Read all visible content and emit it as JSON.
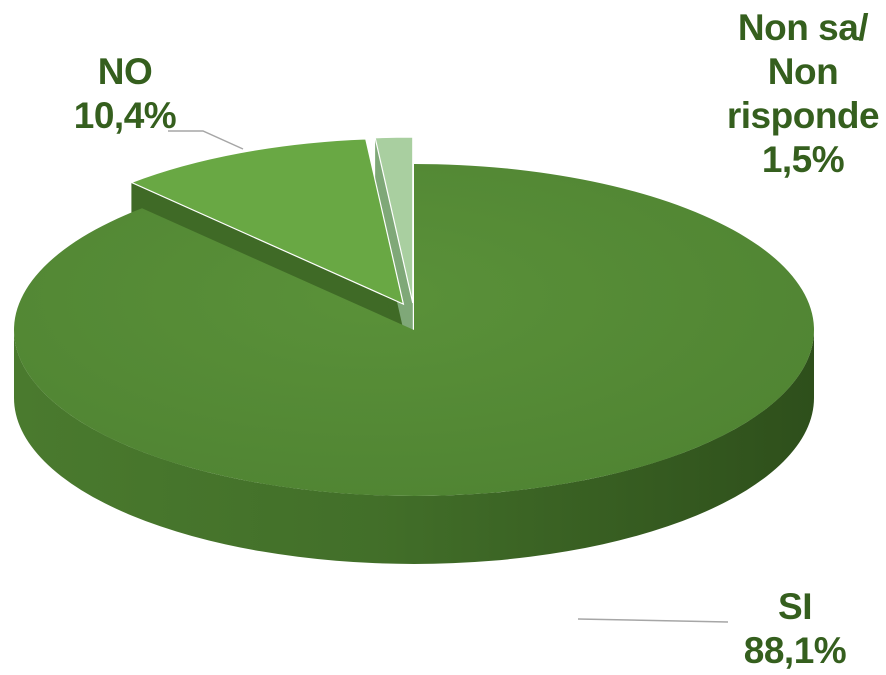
{
  "chart_data": {
    "type": "pie",
    "variant": "3d-exploded",
    "slices": [
      {
        "name": "SI",
        "value": 88.1,
        "value_label": "88,1%",
        "color": "#558b37",
        "side_color": "#3e6a25"
      },
      {
        "name": "NO",
        "value": 10.4,
        "value_label": "10,4%",
        "color": "#69a844",
        "side_color": "#3f6a26"
      },
      {
        "name": "Non sa/ Non risponde",
        "value": 1.5,
        "value_label": "1,5%",
        "color": "#a9cfa0",
        "side_color": "#7fa878"
      }
    ],
    "label_color": "#355f1e",
    "leader_line_color": "#a6a6a6"
  },
  "labels": {
    "no": {
      "name": "NO",
      "value": "10,4%"
    },
    "nonsa": {
      "line1": "Non sa/",
      "line2": "Non",
      "line3": "risponde",
      "value": "1,5%"
    },
    "si": {
      "name": "SI",
      "value": "88,1%"
    }
  }
}
